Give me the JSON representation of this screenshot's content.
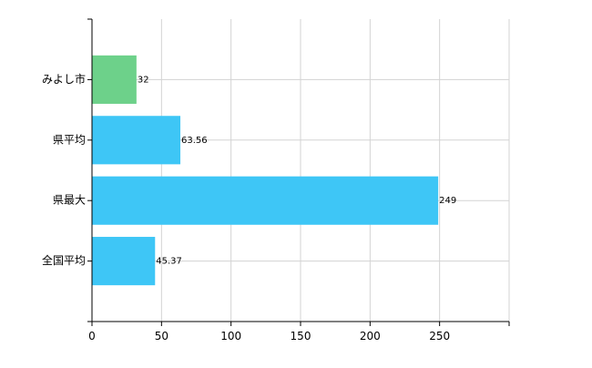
{
  "chart_data": {
    "type": "bar",
    "orientation": "horizontal",
    "title": "",
    "xlabel": "",
    "ylabel": "",
    "categories": [
      "みよし市",
      "県平均",
      "県最大",
      "全国平均"
    ],
    "values": [
      32,
      63.56,
      249,
      45.37
    ],
    "value_labels": [
      "32",
      "63.56",
      "249",
      "45.37"
    ],
    "bar_colors": [
      "#6dd18a",
      "#3ec6f6",
      "#3ec6f6",
      "#3ec6f6"
    ],
    "xlim": [
      0,
      300
    ],
    "xticks": [
      0,
      50,
      100,
      150,
      200,
      250
    ],
    "xtick_labels": [
      "0",
      "50",
      "100",
      "150",
      "200",
      "250"
    ],
    "grid": true,
    "legend": "none"
  }
}
